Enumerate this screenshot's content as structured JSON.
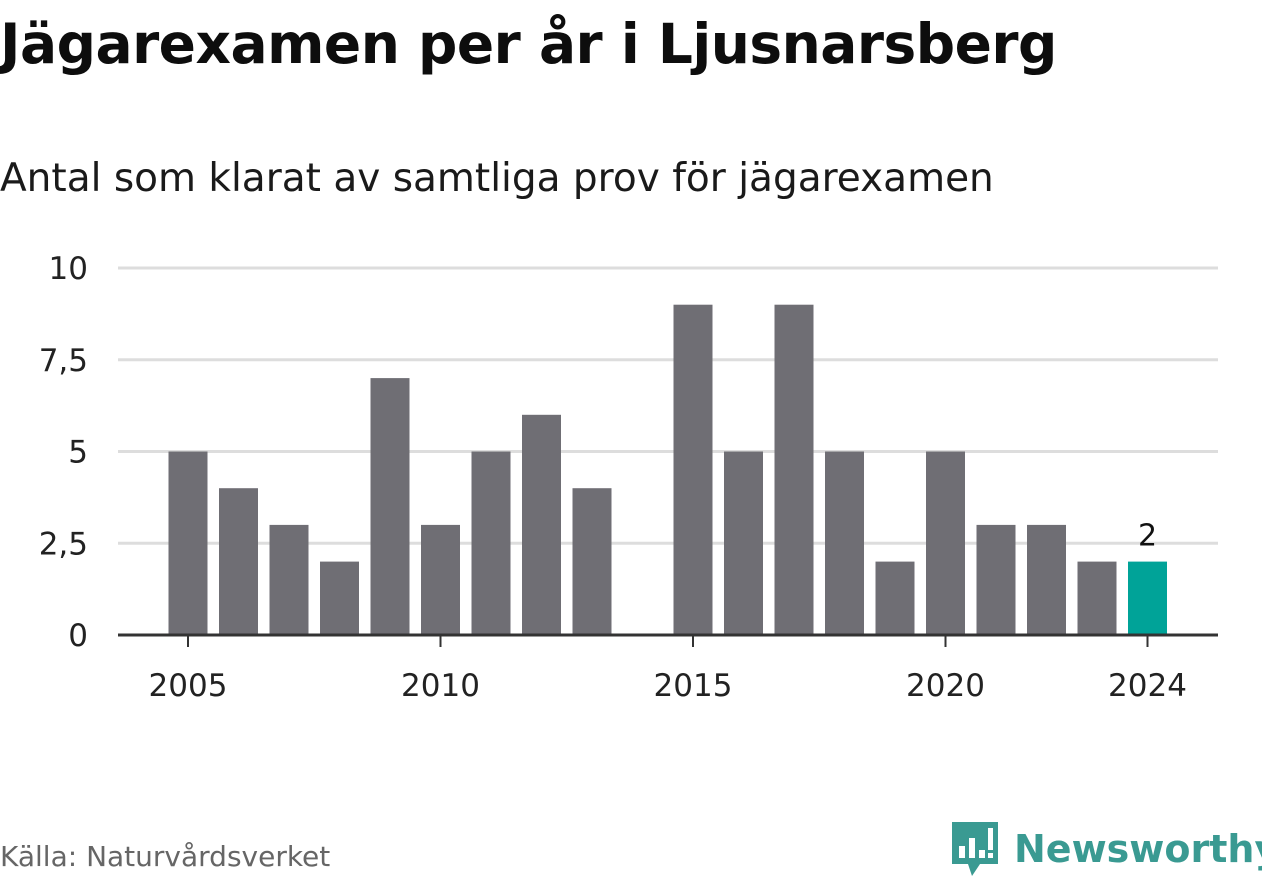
{
  "title": "Jägarexamen per år i Ljusnarsberg",
  "subtitle": "Antal som klarat av samtliga prov för jägarexamen",
  "source": "Källa: Naturvårdsverket",
  "brand": {
    "name": "Newsworthy",
    "icon": "newsworthy-logo-icon"
  },
  "colors": {
    "bar": "#6f6e74",
    "highlight": "#00a398",
    "grid": "#dddddd",
    "axis": "#333333",
    "text": "#222222"
  },
  "chart_data": {
    "type": "bar",
    "title": "Jägarexamen per år i Ljusnarsberg",
    "subtitle": "Antal som klarat av samtliga prov för jägarexamen",
    "xlabel": "",
    "ylabel": "",
    "x": [
      2005,
      2006,
      2007,
      2008,
      2009,
      2010,
      2011,
      2012,
      2013,
      2014,
      2015,
      2016,
      2017,
      2018,
      2019,
      2020,
      2021,
      2022,
      2023,
      2024
    ],
    "values": [
      5,
      4,
      3,
      2,
      7,
      3,
      5,
      6,
      4,
      0,
      9,
      5,
      9,
      5,
      2,
      5,
      3,
      3,
      2,
      2
    ],
    "ylim": [
      0,
      10
    ],
    "yticks": [
      0,
      2.5,
      5,
      7.5,
      10
    ],
    "ytick_labels": [
      "0",
      "2,5",
      "5",
      "7,5",
      "10"
    ],
    "xticks": [
      2005,
      2010,
      2015,
      2020,
      2024
    ],
    "xtick_labels": [
      "2005",
      "2010",
      "2015",
      "2020",
      "2024"
    ],
    "highlight": {
      "x": 2024,
      "label": "2"
    },
    "grid": true,
    "legend": "none"
  }
}
